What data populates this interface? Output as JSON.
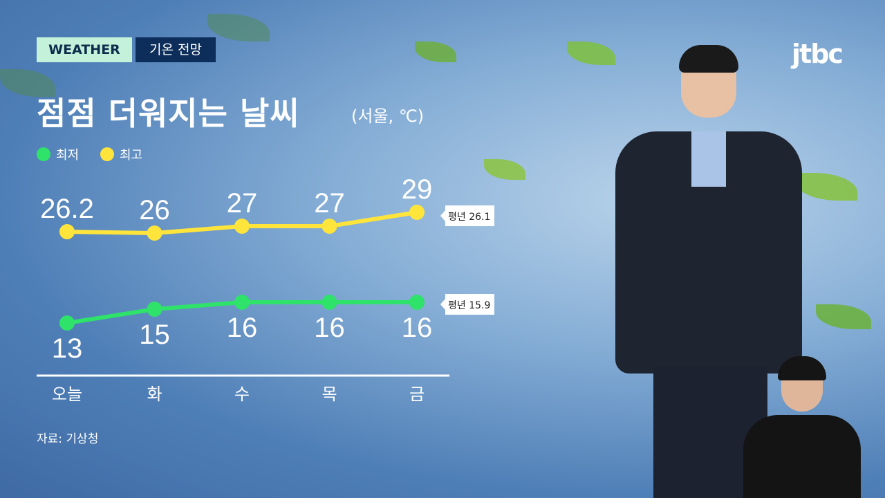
{
  "header": {
    "tag": "WEATHER",
    "subtag": "기온 전망",
    "title": "점점 더워지는 날씨",
    "unit": "(서울, ℃)",
    "logo": "jtbc"
  },
  "colors": {
    "min": "#2ee26a",
    "max": "#ffe53b",
    "tag_bg": "#c3f1da",
    "subtag_bg": "#0d2d5a"
  },
  "source": "자료: 기상청",
  "chart_data": {
    "type": "line",
    "categories": [
      "오늘",
      "화",
      "수",
      "목",
      "금"
    ],
    "series": [
      {
        "name": "최저",
        "values": [
          13,
          15,
          16,
          16,
          16
        ],
        "labels": [
          "13",
          "15",
          "16",
          "16",
          "16"
        ],
        "color": "#2ee26a",
        "normal": "평년 15.9"
      },
      {
        "name": "최고",
        "values": [
          26.2,
          26,
          27,
          27,
          29
        ],
        "labels": [
          "26.2",
          "26",
          "27",
          "27",
          "29"
        ],
        "color": "#ffe53b",
        "normal": "평년 26.1"
      }
    ],
    "legend": "top-left",
    "grid": false
  }
}
